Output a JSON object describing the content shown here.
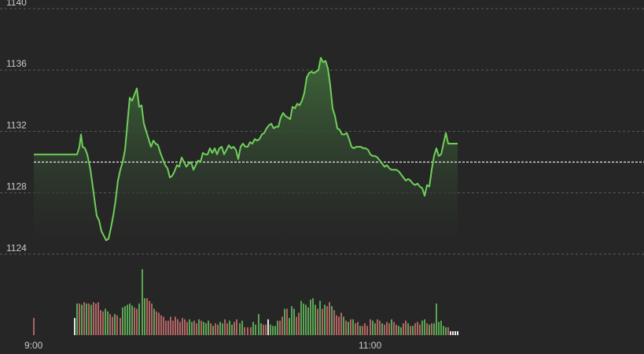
{
  "chart_data": {
    "type": "line",
    "title": "",
    "xlabel": "",
    "ylabel": "",
    "ylim": [
      1123.5,
      1140
    ],
    "y_ticks": [
      "1140",
      "1136",
      "1132",
      "1128",
      "1124"
    ],
    "x_ticks": [
      "9:00",
      "11:00"
    ],
    "reference_value": 1130,
    "colors": {
      "background": "#262626",
      "line": "#6fcf5a",
      "fill_top": "#3f6a3a",
      "fill_bottom": "#262626",
      "grid": "#5a5a5a",
      "reference_line": "#e6e6e6",
      "volume_up": "#5aa552",
      "volume_down": "#b06464",
      "volume_neutral": "#e6e6e6"
    },
    "price": [
      [
        0,
        1130.5
      ],
      [
        55,
        1130.5
      ],
      [
        58,
        1131.0
      ],
      [
        60,
        1131.8
      ],
      [
        62,
        1131.0
      ],
      [
        65,
        1130.9
      ],
      [
        68,
        1130.5
      ],
      [
        72,
        1129.5
      ],
      [
        76,
        1128.0
      ],
      [
        80,
        1126.5
      ],
      [
        83,
        1126.2
      ],
      [
        86,
        1125.5
      ],
      [
        89,
        1125.2
      ],
      [
        92,
        1124.9
      ],
      [
        95,
        1125.0
      ],
      [
        98,
        1125.7
      ],
      [
        101,
        1126.5
      ],
      [
        104,
        1127.5
      ],
      [
        107,
        1128.8
      ],
      [
        110,
        1129.5
      ],
      [
        113,
        1130.0
      ],
      [
        116,
        1130.8
      ],
      [
        119,
        1132.5
      ],
      [
        122,
        1134.2
      ],
      [
        125,
        1134.0
      ],
      [
        128,
        1134.4
      ],
      [
        131,
        1134.8
      ],
      [
        134,
        1133.6
      ],
      [
        137,
        1133.7
      ],
      [
        140,
        1132.5
      ],
      [
        143,
        1132.0
      ],
      [
        146,
        1131.5
      ],
      [
        149,
        1131.0
      ],
      [
        152,
        1131.4
      ],
      [
        155,
        1131.2
      ],
      [
        158,
        1131.1
      ],
      [
        161,
        1130.6
      ],
      [
        164,
        1130.2
      ],
      [
        167,
        1129.8
      ],
      [
        170,
        1129.6
      ],
      [
        173,
        1129.0
      ],
      [
        176,
        1129.1
      ],
      [
        179,
        1129.4
      ],
      [
        182,
        1129.8
      ],
      [
        185,
        1129.7
      ],
      [
        188,
        1130.3
      ],
      [
        191,
        1130.0
      ],
      [
        194,
        1129.7
      ],
      [
        197,
        1129.9
      ],
      [
        200,
        1130.0
      ],
      [
        203,
        1129.5
      ],
      [
        206,
        1129.8
      ],
      [
        209,
        1130.1
      ],
      [
        212,
        1130.0
      ],
      [
        215,
        1130.6
      ],
      [
        218,
        1130.5
      ],
      [
        221,
        1130.5
      ],
      [
        224,
        1130.9
      ],
      [
        227,
        1130.6
      ],
      [
        230,
        1130.9
      ],
      [
        233,
        1130.5
      ],
      [
        236,
        1130.9
      ],
      [
        239,
        1131.0
      ],
      [
        242,
        1130.5
      ],
      [
        245,
        1130.8
      ],
      [
        248,
        1131.1
      ],
      [
        251,
        1130.9
      ],
      [
        254,
        1131.0
      ],
      [
        257,
        1130.8
      ],
      [
        260,
        1130.2
      ],
      [
        263,
        1131.0
      ],
      [
        266,
        1131.2
      ],
      [
        269,
        1131.0
      ],
      [
        272,
        1131.0
      ],
      [
        275,
        1131.3
      ],
      [
        278,
        1131.2
      ],
      [
        281,
        1131.5
      ],
      [
        284,
        1131.4
      ],
      [
        287,
        1131.5
      ],
      [
        290,
        1131.8
      ],
      [
        293,
        1131.9
      ],
      [
        296,
        1132.2
      ],
      [
        299,
        1132.4
      ],
      [
        302,
        1132.5
      ],
      [
        305,
        1132.2
      ],
      [
        308,
        1132.3
      ],
      [
        311,
        1132.3
      ],
      [
        314,
        1132.9
      ],
      [
        317,
        1133.2
      ],
      [
        320,
        1133.0
      ],
      [
        323,
        1132.9
      ],
      [
        326,
        1132.8
      ],
      [
        329,
        1133.6
      ],
      [
        332,
        1133.5
      ],
      [
        335,
        1133.8
      ],
      [
        338,
        1133.7
      ],
      [
        341,
        1134.0
      ],
      [
        344,
        1134.5
      ],
      [
        347,
        1135.5
      ],
      [
        350,
        1135.8
      ],
      [
        353,
        1135.9
      ],
      [
        356,
        1135.8
      ],
      [
        359,
        1135.9
      ],
      [
        362,
        1136.0
      ],
      [
        365,
        1136.8
      ],
      [
        368,
        1136.5
      ],
      [
        371,
        1136.6
      ],
      [
        374,
        1136.1
      ],
      [
        377,
        1135.0
      ],
      [
        380,
        1133.5
      ],
      [
        383,
        1133.0
      ],
      [
        386,
        1132.2
      ],
      [
        389,
        1132.1
      ],
      [
        392,
        1131.8
      ],
      [
        395,
        1131.8
      ],
      [
        398,
        1131.9
      ],
      [
        401,
        1131.5
      ],
      [
        404,
        1131.0
      ],
      [
        407,
        1130.9
      ],
      [
        410,
        1131.0
      ],
      [
        413,
        1131.0
      ],
      [
        416,
        1131.0
      ],
      [
        419,
        1130.9
      ],
      [
        422,
        1130.9
      ],
      [
        425,
        1130.8
      ],
      [
        428,
        1130.5
      ],
      [
        431,
        1130.4
      ],
      [
        434,
        1130.4
      ],
      [
        437,
        1130.3
      ],
      [
        440,
        1130.1
      ],
      [
        443,
        1129.9
      ],
      [
        446,
        1129.7
      ],
      [
        449,
        1129.8
      ],
      [
        452,
        1129.6
      ],
      [
        455,
        1129.5
      ],
      [
        458,
        1129.5
      ],
      [
        461,
        1129.5
      ],
      [
        464,
        1129.4
      ],
      [
        467,
        1129.2
      ],
      [
        470,
        1129.0
      ],
      [
        473,
        1128.8
      ],
      [
        476,
        1128.9
      ],
      [
        479,
        1128.8
      ],
      [
        482,
        1128.6
      ],
      [
        485,
        1128.5
      ],
      [
        488,
        1128.6
      ],
      [
        491,
        1128.4
      ],
      [
        494,
        1128.3
      ],
      [
        497,
        1127.8
      ],
      [
        500,
        1128.5
      ],
      [
        503,
        1128.4
      ],
      [
        506,
        1129.5
      ],
      [
        509,
        1130.4
      ],
      [
        512,
        1130.9
      ],
      [
        515,
        1130.4
      ],
      [
        518,
        1130.5
      ],
      [
        521,
        1131.2
      ],
      [
        524,
        1131.9
      ],
      [
        527,
        1131.2
      ],
      [
        530,
        1131.2
      ],
      [
        539,
        1131.2
      ]
    ],
    "volume": [
      [
        0,
        0.26,
        "down"
      ],
      [
        52,
        0.26,
        "neutral"
      ],
      [
        55,
        0.48,
        "up"
      ],
      [
        58,
        0.48,
        "down"
      ],
      [
        61,
        0.46,
        "up"
      ],
      [
        64,
        0.5,
        "down"
      ],
      [
        67,
        0.48,
        "up"
      ],
      [
        70,
        0.48,
        "down"
      ],
      [
        73,
        0.46,
        "up"
      ],
      [
        76,
        0.5,
        "down"
      ],
      [
        79,
        0.48,
        "down"
      ],
      [
        82,
        0.5,
        "down"
      ],
      [
        85,
        0.38,
        "down"
      ],
      [
        88,
        0.36,
        "down"
      ],
      [
        91,
        0.4,
        "up"
      ],
      [
        94,
        0.36,
        "up"
      ],
      [
        97,
        0.32,
        "down"
      ],
      [
        100,
        0.28,
        "down"
      ],
      [
        103,
        0.32,
        "up"
      ],
      [
        106,
        0.3,
        "down"
      ],
      [
        110,
        0.26,
        "down"
      ],
      [
        113,
        0.42,
        "up"
      ],
      [
        116,
        0.44,
        "up"
      ],
      [
        119,
        0.46,
        "up"
      ],
      [
        122,
        0.48,
        "up"
      ],
      [
        125,
        0.45,
        "up"
      ],
      [
        128,
        0.42,
        "down"
      ],
      [
        131,
        0.4,
        "down"
      ],
      [
        134,
        0.48,
        "up"
      ],
      [
        138,
        1.0,
        "up"
      ],
      [
        141,
        0.56,
        "up"
      ],
      [
        144,
        0.56,
        "down"
      ],
      [
        147,
        0.52,
        "down"
      ],
      [
        150,
        0.48,
        "down"
      ],
      [
        153,
        0.4,
        "up"
      ],
      [
        156,
        0.36,
        "down"
      ],
      [
        159,
        0.34,
        "down"
      ],
      [
        162,
        0.3,
        "down"
      ],
      [
        165,
        0.28,
        "down"
      ],
      [
        168,
        0.22,
        "down"
      ],
      [
        171,
        0.22,
        "down"
      ],
      [
        174,
        0.28,
        "down"
      ],
      [
        177,
        0.22,
        "down"
      ],
      [
        180,
        0.28,
        "down"
      ],
      [
        183,
        0.24,
        "down"
      ],
      [
        186,
        0.2,
        "down"
      ],
      [
        189,
        0.26,
        "down"
      ],
      [
        192,
        0.24,
        "down"
      ],
      [
        195,
        0.2,
        "down"
      ],
      [
        198,
        0.24,
        "up"
      ],
      [
        201,
        0.2,
        "up"
      ],
      [
        204,
        0.22,
        "down"
      ],
      [
        207,
        0.18,
        "down"
      ],
      [
        210,
        0.24,
        "up"
      ],
      [
        213,
        0.22,
        "down"
      ],
      [
        216,
        0.2,
        "up"
      ],
      [
        219,
        0.18,
        "up"
      ],
      [
        222,
        0.22,
        "up"
      ],
      [
        225,
        0.18,
        "down"
      ],
      [
        228,
        0.14,
        "up"
      ],
      [
        231,
        0.18,
        "down"
      ],
      [
        234,
        0.16,
        "down"
      ],
      [
        237,
        0.2,
        "up"
      ],
      [
        240,
        0.18,
        "up"
      ],
      [
        243,
        0.24,
        "down"
      ],
      [
        246,
        0.18,
        "down"
      ],
      [
        249,
        0.22,
        "up"
      ],
      [
        252,
        0.16,
        "up"
      ],
      [
        255,
        0.2,
        "down"
      ],
      [
        258,
        0.24,
        "down"
      ],
      [
        262,
        0.18,
        "up"
      ],
      [
        265,
        0.22,
        "up"
      ],
      [
        268,
        0.12,
        "down"
      ],
      [
        272,
        0.12,
        "down"
      ],
      [
        276,
        0.12,
        "down"
      ],
      [
        279,
        0.2,
        "up"
      ],
      [
        282,
        0.16,
        "up"
      ],
      [
        286,
        0.32,
        "up"
      ],
      [
        289,
        0.18,
        "up"
      ],
      [
        292,
        0.16,
        "down"
      ],
      [
        295,
        0.16,
        "down"
      ],
      [
        298,
        0.24,
        "neutral"
      ],
      [
        301,
        0.16,
        "up"
      ],
      [
        304,
        0.14,
        "up"
      ],
      [
        307,
        0.14,
        "up"
      ],
      [
        310,
        0.22,
        "up"
      ],
      [
        313,
        0.22,
        "down"
      ],
      [
        316,
        0.28,
        "down"
      ],
      [
        319,
        0.4,
        "up"
      ],
      [
        322,
        0.4,
        "down"
      ],
      [
        325,
        0.26,
        "up"
      ],
      [
        328,
        0.44,
        "up"
      ],
      [
        331,
        0.4,
        "up"
      ],
      [
        334,
        0.28,
        "down"
      ],
      [
        337,
        0.34,
        "down"
      ],
      [
        340,
        0.52,
        "up"
      ],
      [
        343,
        0.48,
        "up"
      ],
      [
        346,
        0.46,
        "up"
      ],
      [
        349,
        0.42,
        "up"
      ],
      [
        352,
        0.54,
        "up"
      ],
      [
        355,
        0.56,
        "up"
      ],
      [
        358,
        0.46,
        "up"
      ],
      [
        361,
        0.4,
        "down"
      ],
      [
        364,
        0.52,
        "up"
      ],
      [
        367,
        0.4,
        "down"
      ],
      [
        370,
        0.46,
        "up"
      ],
      [
        373,
        0.44,
        "down"
      ],
      [
        376,
        0.5,
        "down"
      ],
      [
        379,
        0.44,
        "up"
      ],
      [
        382,
        0.38,
        "down"
      ],
      [
        385,
        0.3,
        "down"
      ],
      [
        388,
        0.28,
        "down"
      ],
      [
        391,
        0.34,
        "down"
      ],
      [
        394,
        0.28,
        "up"
      ],
      [
        397,
        0.22,
        "down"
      ],
      [
        400,
        0.2,
        "up"
      ],
      [
        403,
        0.24,
        "down"
      ],
      [
        406,
        0.24,
        "up"
      ],
      [
        409,
        0.18,
        "down"
      ],
      [
        412,
        0.2,
        "down"
      ],
      [
        415,
        0.14,
        "up"
      ],
      [
        418,
        0.14,
        "down"
      ],
      [
        421,
        0.18,
        "down"
      ],
      [
        424,
        0.14,
        "down"
      ],
      [
        428,
        0.24,
        "down"
      ],
      [
        431,
        0.22,
        "up"
      ],
      [
        434,
        0.18,
        "up"
      ],
      [
        437,
        0.24,
        "down"
      ],
      [
        440,
        0.22,
        "down"
      ],
      [
        443,
        0.18,
        "up"
      ],
      [
        446,
        0.16,
        "down"
      ],
      [
        449,
        0.2,
        "down"
      ],
      [
        452,
        0.18,
        "down"
      ],
      [
        455,
        0.24,
        "up"
      ],
      [
        458,
        0.2,
        "down"
      ],
      [
        461,
        0.16,
        "down"
      ],
      [
        464,
        0.14,
        "up"
      ],
      [
        467,
        0.12,
        "up"
      ],
      [
        470,
        0.18,
        "down"
      ],
      [
        473,
        0.22,
        "down"
      ],
      [
        476,
        0.18,
        "up"
      ],
      [
        479,
        0.14,
        "down"
      ],
      [
        482,
        0.14,
        "up"
      ],
      [
        485,
        0.18,
        "down"
      ],
      [
        488,
        0.2,
        "down"
      ],
      [
        491,
        0.16,
        "down"
      ],
      [
        494,
        0.22,
        "up"
      ],
      [
        497,
        0.24,
        "up"
      ],
      [
        500,
        0.18,
        "down"
      ],
      [
        503,
        0.16,
        "up"
      ],
      [
        506,
        0.18,
        "down"
      ],
      [
        509,
        0.18,
        "up"
      ],
      [
        512,
        0.48,
        "up"
      ],
      [
        515,
        0.2,
        "up"
      ],
      [
        518,
        0.22,
        "up"
      ],
      [
        521,
        0.14,
        "up"
      ],
      [
        524,
        0.12,
        "up"
      ],
      [
        527,
        0.12,
        "down"
      ],
      [
        530,
        0.06,
        "neutral"
      ],
      [
        533,
        0.06,
        "neutral"
      ],
      [
        536,
        0.06,
        "neutral"
      ],
      [
        539,
        0.06,
        "neutral"
      ]
    ]
  }
}
